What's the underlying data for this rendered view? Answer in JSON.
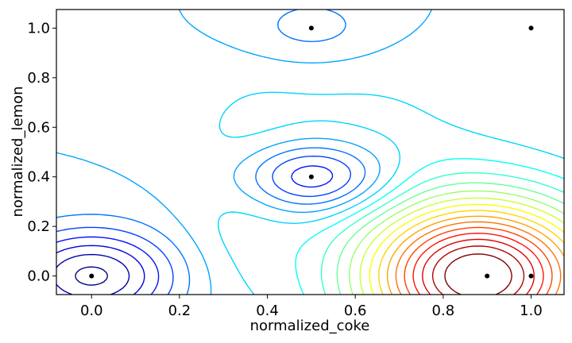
{
  "chart_data": {
    "type": "contour",
    "title": "",
    "xlabel": "normalized_coke",
    "ylabel": "normalized_lemon",
    "xlim": [
      -0.08,
      1.075
    ],
    "ylim": [
      -0.075,
      1.075
    ],
    "xticks": [
      0.0,
      0.2,
      0.4,
      0.6,
      0.8,
      1.0
    ],
    "xtick_labels": [
      "0.0",
      "0.2",
      "0.4",
      "0.6",
      "0.8",
      "1.0"
    ],
    "yticks": [
      0.0,
      0.2,
      0.4,
      0.6,
      0.8,
      1.0
    ],
    "ytick_labels": [
      "0.0",
      "0.2",
      "0.4",
      "0.6",
      "0.8",
      "1.0"
    ],
    "colormap": "jet",
    "points": [
      {
        "x": 0.0,
        "y": 0.0
      },
      {
        "x": 0.5,
        "y": 1.0
      },
      {
        "x": 1.0,
        "y": 1.0
      },
      {
        "x": 0.5,
        "y": 0.4
      },
      {
        "x": 0.9,
        "y": 0.0
      },
      {
        "x": 1.0,
        "y": 0.0
      }
    ],
    "point_color": "#000000",
    "approx_surface": {
      "base": 0.3,
      "bumps": [
        {
          "x": 0.0,
          "y": 0.0,
          "amp": -0.25,
          "sx": 0.13,
          "sy": 0.13
        },
        {
          "x": 0.5,
          "y": 0.4,
          "amp": -0.2,
          "sx": 0.12,
          "sy": 0.1
        },
        {
          "x": 0.5,
          "y": 1.0,
          "amp": -0.06,
          "sx": 0.11,
          "sy": 0.1
        },
        {
          "x": 0.88,
          "y": 0.0,
          "amp": 0.65,
          "sx": 0.19,
          "sy": 0.22
        },
        {
          "x": 0.35,
          "y": 0.3,
          "amp": 0.06,
          "sx": 0.1,
          "sy": 0.3
        },
        {
          "x": 0.6,
          "y": 0.6,
          "amp": 0.05,
          "sx": 0.2,
          "sy": 0.2
        }
      ]
    },
    "levels": [
      0.06,
      0.1,
      0.14,
      0.18,
      0.22,
      0.26,
      0.3,
      0.34,
      0.38,
      0.42,
      0.46,
      0.5,
      0.54,
      0.58,
      0.62,
      0.66,
      0.7,
      0.74,
      0.78,
      0.82,
      0.86,
      0.9
    ]
  }
}
